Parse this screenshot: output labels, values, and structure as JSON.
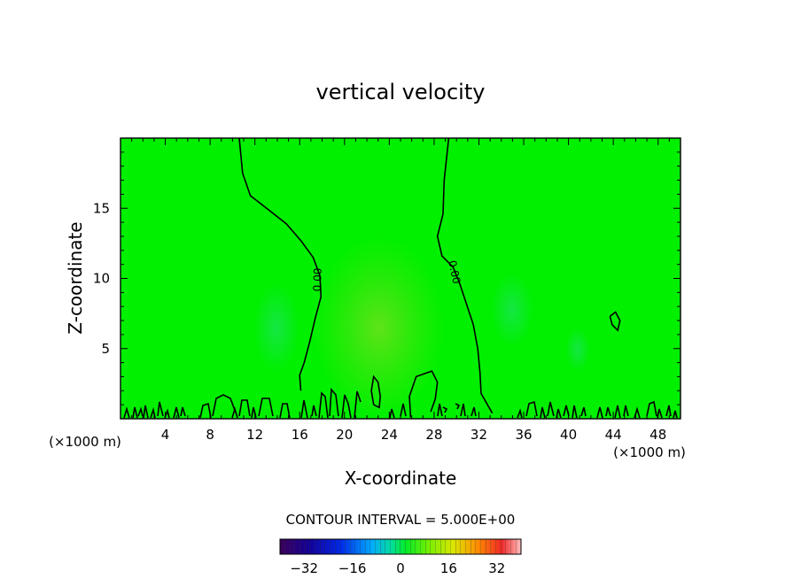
{
  "chart_data": {
    "type": "heatmap",
    "title": "vertical velocity",
    "xlabel": "X-coordinate",
    "ylabel": "Z-coordinate",
    "x_unit": "(×1000 m)",
    "y_unit": "(×1000 m)",
    "xlim": [
      0,
      50
    ],
    "ylim": [
      0,
      20
    ],
    "x_ticks": [
      4,
      8,
      12,
      16,
      20,
      24,
      28,
      32,
      36,
      40,
      44,
      48
    ],
    "y_ticks": [
      5,
      10,
      15
    ],
    "contour_interval_label": "CONTOUR INTERVAL = 5.000E+00",
    "contour_label": "0.00",
    "field_value_range": [
      -40,
      40
    ],
    "colorbar_ticks": [
      -32,
      -16,
      0,
      16,
      32
    ],
    "zero_contours": [
      {
        "name": "left-zero-contour",
        "points": [
          [
            10.6,
            20
          ],
          [
            10.9,
            17.5
          ],
          [
            11.6,
            15.9
          ],
          [
            13.2,
            14.9
          ],
          [
            14.8,
            13.9
          ],
          [
            16.1,
            12.7
          ],
          [
            17.2,
            11.5
          ],
          [
            17.8,
            10.2
          ],
          [
            17.9,
            8.7
          ],
          [
            17.4,
            7.2
          ],
          [
            16.9,
            5.5
          ],
          [
            16.4,
            4.0
          ],
          [
            16.0,
            3.1
          ],
          [
            16.1,
            2.0
          ]
        ]
      },
      {
        "name": "right-zero-contour",
        "points": [
          [
            29.3,
            20
          ],
          [
            28.9,
            17.0
          ],
          [
            28.8,
            14.6
          ],
          [
            28.3,
            13.0
          ],
          [
            28.7,
            11.6
          ],
          [
            29.7,
            10.8
          ],
          [
            30.3,
            9.6
          ],
          [
            30.8,
            8.4
          ],
          [
            31.5,
            6.7
          ],
          [
            31.9,
            5.0
          ],
          [
            32.1,
            3.3
          ],
          [
            32.2,
            1.8
          ],
          [
            33.2,
            0.4
          ]
        ]
      },
      {
        "name": "central-updraft-contour",
        "points": [
          [
            22.6,
            1.0
          ],
          [
            22.4,
            2.0
          ],
          [
            22.6,
            3.0
          ],
          [
            23.0,
            2.6
          ],
          [
            23.2,
            1.6
          ],
          [
            23.1,
            0.8
          ],
          [
            22.6,
            1.0
          ]
        ]
      },
      {
        "name": "near-surface-contour-mid",
        "points": [
          [
            25.9,
            0.1
          ],
          [
            25.8,
            1.6
          ],
          [
            26.4,
            3.0
          ],
          [
            27.8,
            3.4
          ],
          [
            28.3,
            2.6
          ],
          [
            28.1,
            1.4
          ],
          [
            27.7,
            0.5
          ]
        ]
      },
      {
        "name": "small-closed-contour-right",
        "points": [
          [
            43.7,
            7.3
          ],
          [
            44.2,
            7.6
          ],
          [
            44.6,
            7.0
          ],
          [
            44.4,
            6.3
          ],
          [
            43.9,
            6.7
          ],
          [
            43.7,
            7.3
          ]
        ]
      }
    ],
    "contour_label_positions": [
      {
        "text_ref": "contour_label",
        "x": 17.9,
        "y": 9.9,
        "angle": -88
      },
      {
        "text_ref": "contour_label",
        "x": 29.5,
        "y": 10.4,
        "angle": 78
      }
    ],
    "grid": false,
    "legend": "colorbar-bottom"
  },
  "colors": {
    "background_field": "#00f000",
    "axis": "#000000",
    "contour_line": "#000000"
  }
}
